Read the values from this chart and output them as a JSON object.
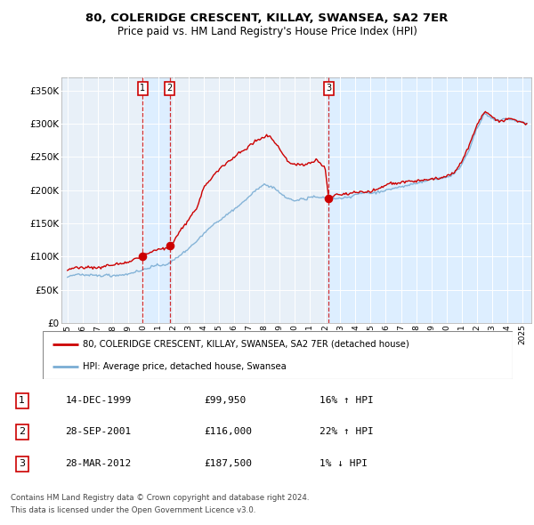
{
  "title1": "80, COLERIDGE CRESCENT, KILLAY, SWANSEA, SA2 7ER",
  "title2": "Price paid vs. HM Land Registry's House Price Index (HPI)",
  "legend_line1": "80, COLERIDGE CRESCENT, KILLAY, SWANSEA, SA2 7ER (detached house)",
  "legend_line2": "HPI: Average price, detached house, Swansea",
  "footer1": "Contains HM Land Registry data © Crown copyright and database right 2024.",
  "footer2": "This data is licensed under the Open Government Licence v3.0.",
  "transactions": [
    {
      "num": 1,
      "date_str": "14-DEC-1999",
      "price": 99950,
      "pct": "16%",
      "dir": "↑",
      "year": 1999.958
    },
    {
      "num": 2,
      "date_str": "28-SEP-2001",
      "price": 116000,
      "pct": "22%",
      "dir": "↑",
      "year": 2001.742
    },
    {
      "num": 3,
      "date_str": "28-MAR-2012",
      "price": 187500,
      "pct": "1%",
      "dir": "↓",
      "year": 2012.241
    }
  ],
  "hpi_color": "#7aadd4",
  "property_color": "#cc0000",
  "shade_color": "#ddeeff",
  "vline_color": "#cc0000",
  "background_color": "#ffffff",
  "plot_bg": "#e8f0f8",
  "ylim": [
    0,
    370000
  ],
  "yticks": [
    0,
    50000,
    100000,
    150000,
    200000,
    250000,
    300000,
    350000
  ],
  "xlim_start": 1994.6,
  "xlim_end": 2025.6,
  "xticks": [
    1995,
    1996,
    1997,
    1998,
    1999,
    2000,
    2001,
    2002,
    2003,
    2004,
    2005,
    2006,
    2007,
    2008,
    2009,
    2010,
    2011,
    2012,
    2013,
    2014,
    2015,
    2016,
    2017,
    2018,
    2019,
    2020,
    2021,
    2022,
    2023,
    2024,
    2025
  ]
}
